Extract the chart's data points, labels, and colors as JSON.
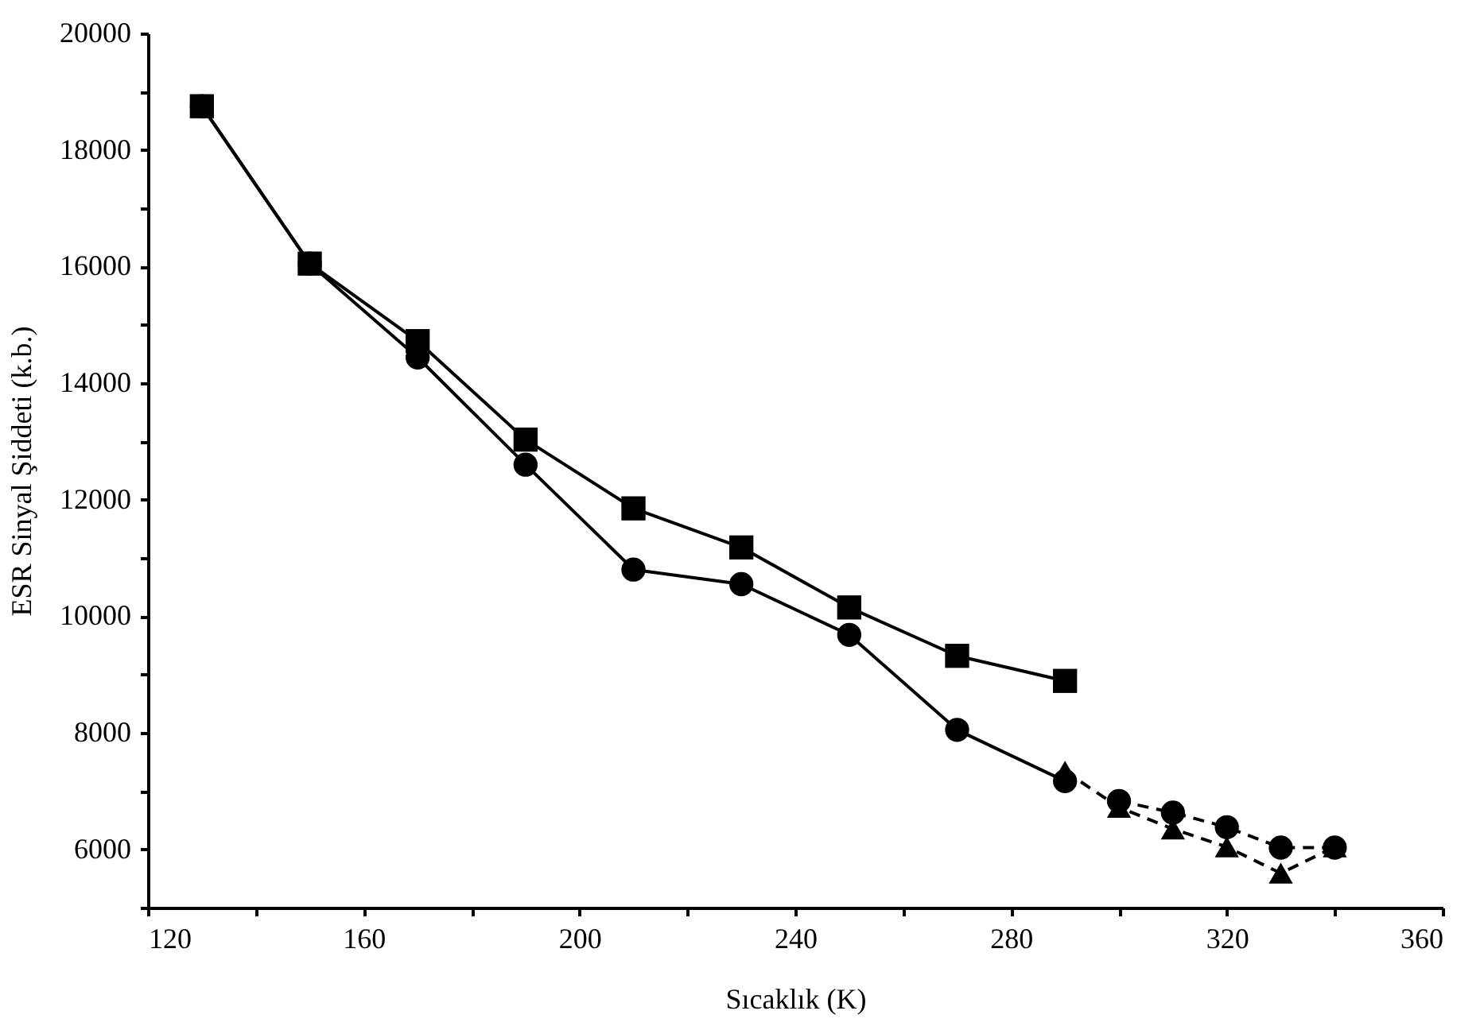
{
  "chart_data": {
    "type": "line",
    "xlabel": "Sıcaklık (K)",
    "ylabel": "ESR Sinyal Şiddeti (k.b.)",
    "xlim": [
      120,
      360
    ],
    "xticks": [
      120,
      {
        "value": 140,
        "label": null
      },
      160,
      {
        "value": 180,
        "label": null
      },
      200,
      {
        "value": 220,
        "label": null
      },
      240,
      {
        "value": 260,
        "label": null
      },
      280,
      {
        "value": 300,
        "label": null
      },
      320,
      {
        "value": 340,
        "label": null
      },
      360
    ],
    "ylim": [
      5000,
      20000
    ],
    "yticks": [
      {
        "value": 5000,
        "label": null
      },
      6000,
      {
        "value": 7000,
        "label": null
      },
      8000,
      {
        "value": 9000,
        "label": null
      },
      10000,
      {
        "value": 11000,
        "label": null
      },
      12000,
      {
        "value": 13000,
        "label": null
      },
      14000,
      {
        "value": 15000,
        "label": null
      },
      16000,
      {
        "value": 17000,
        "label": null
      },
      18000,
      {
        "value": 19000,
        "label": null
      },
      20000
    ],
    "grid": false,
    "legend": false,
    "series": [
      {
        "color": "#000000",
        "marker": "square",
        "line_style": "solid",
        "x": [
          130,
          150,
          170,
          190,
          210,
          230,
          250,
          270,
          290
        ],
        "values": [
          18750,
          16050,
          14720,
          13030,
          11850,
          11180,
          10150,
          9320,
          8890
        ]
      },
      {
        "color": "#000000",
        "marker": "circle",
        "line_style": "solid",
        "x": [
          130,
          150,
          170,
          190,
          210,
          230,
          250,
          270,
          290
        ],
        "values": [
          18750,
          16050,
          14440,
          12600,
          10800,
          10550,
          9680,
          8050,
          7170
        ]
      },
      {
        "color": "#000000",
        "marker": "circle",
        "line_style": "dashed",
        "x": [
          300,
          310,
          320,
          330,
          340
        ],
        "values": [
          6830,
          6630,
          6380,
          6030,
          6030
        ]
      },
      {
        "color": "#000000",
        "marker": "triangle",
        "line_style": "dashed",
        "x": [
          290,
          300,
          310,
          320,
          330,
          340
        ],
        "values": [
          7340,
          6720,
          6350,
          6040,
          5590,
          6040
        ]
      }
    ]
  }
}
